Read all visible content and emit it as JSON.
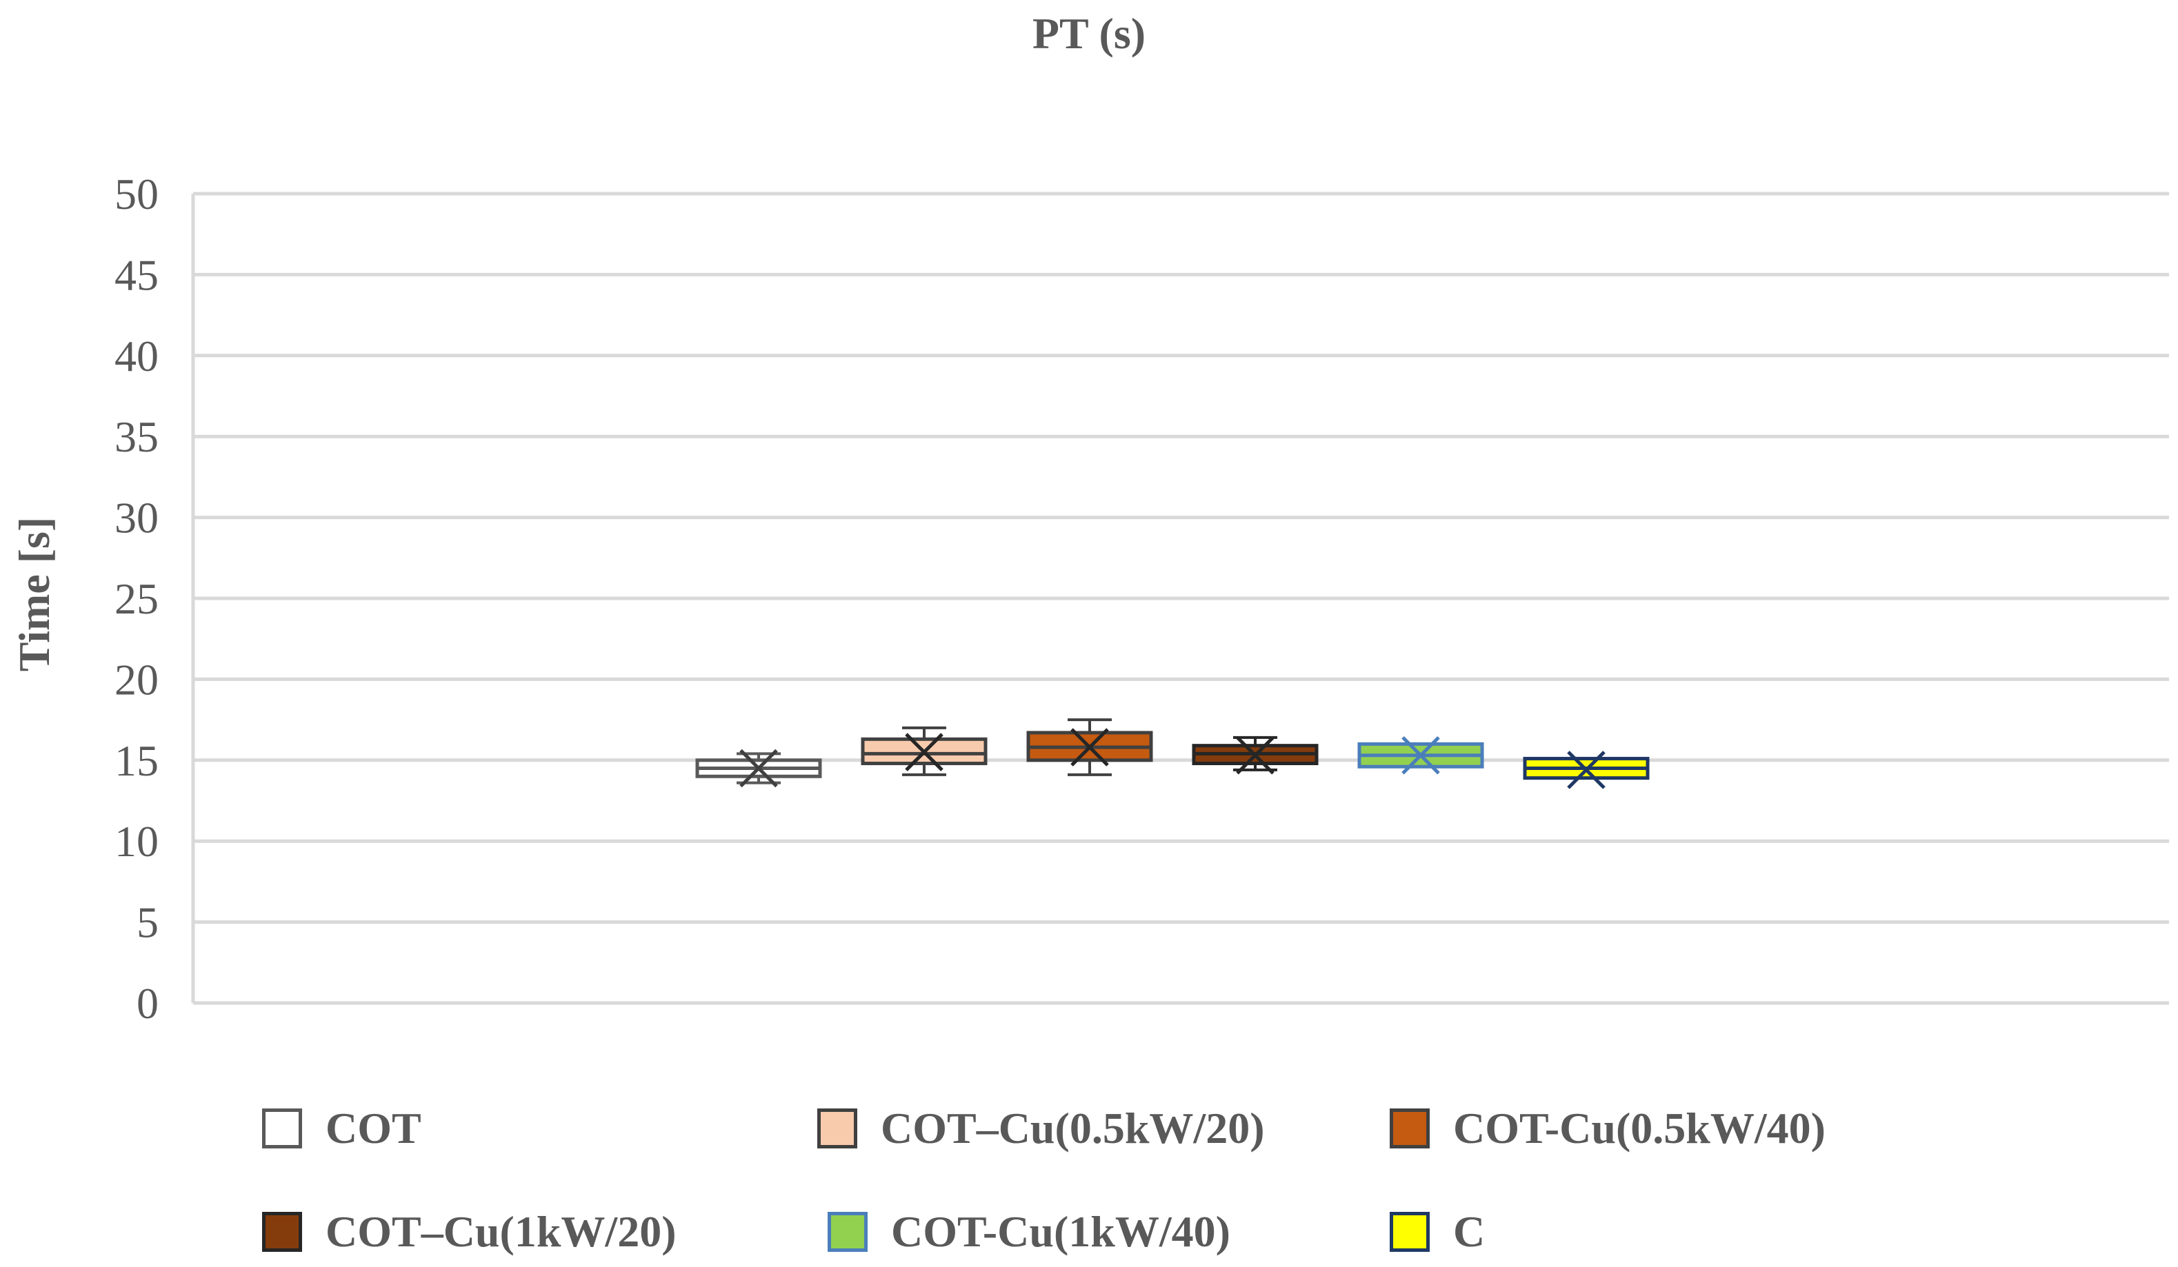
{
  "chart_data": {
    "type": "boxplot",
    "title": "PT (s)",
    "xlabel": "",
    "ylabel": "Time [s]",
    "ylim": [
      0,
      50
    ],
    "yticks": [
      0,
      5,
      10,
      15,
      20,
      25,
      30,
      35,
      40,
      45,
      50
    ],
    "grid": true,
    "legend_position": "bottom",
    "series": [
      {
        "name": "COT",
        "color": "#ffffff",
        "border": "#595959",
        "mean_color": "#404040",
        "min": 13.6,
        "q1": 14.0,
        "median": 14.5,
        "q3": 15.0,
        "max": 15.4,
        "mean": 14.5
      },
      {
        "name": "COT–Cu(0.5kW/20)",
        "color": "#f8cbad",
        "border": "#404040",
        "mean_color": "#262626",
        "min": 14.1,
        "q1": 14.8,
        "median": 15.4,
        "q3": 16.3,
        "max": 17.0,
        "mean": 15.5
      },
      {
        "name": "COT-Cu(0.5kW/40)",
        "color": "#c55a11",
        "border": "#404040",
        "mean_color": "#262626",
        "min": 14.1,
        "q1": 15.0,
        "median": 15.8,
        "q3": 16.7,
        "max": 17.5,
        "mean": 15.8
      },
      {
        "name": "COT–Cu(1kW/20)",
        "color": "#843c0c",
        "border": "#262626",
        "mean_color": "#262626",
        "min": 14.4,
        "q1": 14.8,
        "median": 15.4,
        "q3": 15.9,
        "max": 16.4,
        "mean": 15.3
      },
      {
        "name": "COT-Cu(1kW/40)",
        "color": "#92d050",
        "border": "#4a7ebb",
        "mean_color": "#4a7ebb",
        "min": 14.6,
        "q1": 14.6,
        "median": 15.3,
        "q3": 16.0,
        "max": 16.0,
        "mean": 15.3
      },
      {
        "name": "C",
        "color": "#ffff00",
        "border": "#1f3864",
        "mean_color": "#1f3864",
        "min": 13.9,
        "q1": 13.9,
        "median": 14.5,
        "q3": 15.1,
        "max": 15.1,
        "mean": 14.4
      }
    ]
  }
}
